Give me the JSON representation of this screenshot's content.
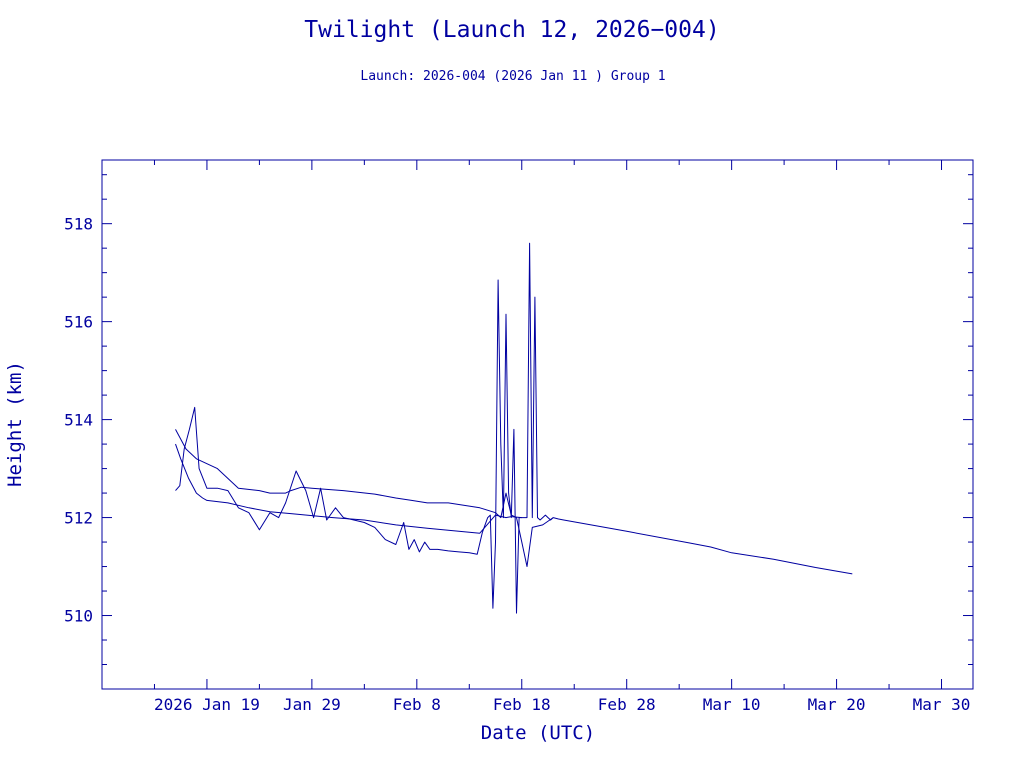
{
  "title": "Twilight (Launch 12, 2026−004)",
  "subtitle": "Launch: 2026-004  (2026 Jan 11 )  Group 1",
  "colors": {
    "ink": "#0000a0",
    "background": "#ffffff"
  },
  "chart_data": {
    "type": "line",
    "xlabel": "Date (UTC)",
    "ylabel": "Height (km)",
    "xlim": [
      "2026-01-09",
      "2026-04-02"
    ],
    "ylim": [
      508.5,
      519.3
    ],
    "grid": false,
    "legend": "none",
    "x_ticks": [
      {
        "date": "2026-01-19",
        "label": "2026 Jan 19"
      },
      {
        "date": "2026-01-29",
        "label": "Jan 29"
      },
      {
        "date": "2026-02-08",
        "label": "Feb  8"
      },
      {
        "date": "2026-02-18",
        "label": "Feb 18"
      },
      {
        "date": "2026-02-28",
        "label": "Feb 28"
      },
      {
        "date": "2026-03-10",
        "label": "Mar 10"
      },
      {
        "date": "2026-03-20",
        "label": "Mar 20"
      },
      {
        "date": "2026-03-30",
        "label": "Mar 30"
      }
    ],
    "y_ticks": [
      {
        "value": 510,
        "label": "510"
      },
      {
        "value": 512,
        "label": "512"
      },
      {
        "value": 514,
        "label": "514"
      },
      {
        "value": 516,
        "label": "516"
      },
      {
        "value": 518,
        "label": "518"
      }
    ],
    "series": [
      {
        "x": [
          "2026-01-16T00:00",
          "2026-01-16T12:00",
          "2026-01-17T06:00",
          "2026-01-18T00:00",
          "2026-01-18T14:00",
          "2026-01-19T00:00",
          "2026-01-21T00:00",
          "2026-01-23T00:00",
          "2026-01-25T00:00",
          "2026-01-27T00:00",
          "2026-01-28T00:00",
          "2026-01-29T00:00",
          "2026-01-31T00:00",
          "2026-02-03T00:00",
          "2026-02-06T00:00",
          "2026-02-09T00:00",
          "2026-02-12T00:00",
          "2026-02-14T00:00",
          "2026-02-15T12:00",
          "2026-02-16T12:00",
          "2026-02-17T00:00",
          "2026-02-17T12:00",
          "2026-02-18T00:00"
        ],
        "y": [
          513.5,
          513.2,
          512.8,
          512.5,
          512.4,
          512.35,
          512.3,
          512.2,
          512.12,
          512.08,
          512.06,
          512.04,
          512.0,
          511.95,
          511.85,
          511.78,
          511.72,
          511.68,
          512.05,
          512.0,
          512.02,
          512.01,
          512.0
        ]
      },
      {
        "x": [
          "2026-01-16T00:00",
          "2026-01-17T00:00",
          "2026-01-18T00:00",
          "2026-01-20T00:00",
          "2026-01-22T00:00",
          "2026-01-24T00:00",
          "2026-01-25T00:00",
          "2026-01-26T12:00",
          "2026-01-27T00:00",
          "2026-01-28T00:00",
          "2026-01-29T00:00",
          "2026-02-01T00:00",
          "2026-02-04T00:00",
          "2026-02-06T00:00",
          "2026-02-07T12:00",
          "2026-02-09T00:00",
          "2026-02-11T00:00",
          "2026-02-14T00:00",
          "2026-02-15T12:00",
          "2026-02-16T00:00",
          "2026-02-16T12:00",
          "2026-02-17T00:00",
          "2026-02-17T12:00",
          "2026-02-18T00:00",
          "2026-02-18T12:00",
          "2026-02-19T00:00",
          "2026-02-20T00:00",
          "2026-02-21T00:00"
        ],
        "y": [
          513.8,
          513.4,
          513.2,
          513.0,
          512.6,
          512.55,
          512.5,
          512.5,
          512.55,
          512.62,
          512.6,
          512.55,
          512.48,
          512.4,
          512.35,
          512.3,
          512.3,
          512.2,
          512.1,
          512.0,
          512.5,
          512.05,
          512.0,
          511.5,
          511.0,
          511.8,
          511.85,
          512.0
        ]
      },
      {
        "x": [
          "2026-01-16T00:00",
          "2026-01-16T10:00",
          "2026-01-16T20:00",
          "2026-01-17T08:00",
          "2026-01-17T20:00",
          "2026-01-18T06:00",
          "2026-01-19T00:00",
          "2026-01-20T00:00",
          "2026-01-21T00:00",
          "2026-01-22T00:00",
          "2026-01-23T00:00",
          "2026-01-24T00:00",
          "2026-01-25T00:00",
          "2026-01-25T20:00",
          "2026-01-26T12:00",
          "2026-01-27T12:00",
          "2026-01-28T10:00",
          "2026-01-29T04:00",
          "2026-01-29T20:00",
          "2026-01-30T10:00",
          "2026-01-31T06:00",
          "2026-02-01T00:00",
          "2026-02-02T00:00",
          "2026-02-03T00:00",
          "2026-02-04T00:00",
          "2026-02-05T00:00",
          "2026-02-06T00:00",
          "2026-02-06T18:00",
          "2026-02-07T06:00",
          "2026-02-07T18:00",
          "2026-02-08T06:00",
          "2026-02-08T18:00",
          "2026-02-09T06:00",
          "2026-02-10T00:00",
          "2026-02-11T00:00",
          "2026-02-12T00:00",
          "2026-02-13T00:00",
          "2026-02-13T18:00",
          "2026-02-14T06:00",
          "2026-02-14T18:00",
          "2026-02-15T00:00",
          "2026-02-15T06:00",
          "2026-02-15T12:00",
          "2026-02-15T18:00",
          "2026-02-16T00:00",
          "2026-02-16T06:00",
          "2026-02-16T12:00",
          "2026-02-16T18:00",
          "2026-02-17T00:00",
          "2026-02-17T06:00",
          "2026-02-17T12:00",
          "2026-02-17T18:00",
          "2026-02-18T00:00",
          "2026-02-18T04:00",
          "2026-02-18T08:00",
          "2026-02-18T12:00",
          "2026-02-18T18:00",
          "2026-02-19T00:00",
          "2026-02-19T06:00",
          "2026-02-19T12:00",
          "2026-02-19T18:00",
          "2026-02-20T00:00",
          "2026-02-20T06:00",
          "2026-02-20T12:00",
          "2026-02-20T18:00",
          "2026-02-21T00:00",
          "2026-02-21T12:00",
          "2026-02-22T00:00",
          "2026-02-28T00:00",
          "2026-03-06T00:00",
          "2026-03-08T00:00",
          "2026-03-10T00:00",
          "2026-03-14T00:00",
          "2026-03-18T00:00",
          "2026-03-21T12:00"
        ],
        "y": [
          512.55,
          512.65,
          513.4,
          513.8,
          514.25,
          513.0,
          512.6,
          512.6,
          512.55,
          512.2,
          512.1,
          511.75,
          512.1,
          512.0,
          512.3,
          512.95,
          512.55,
          512.0,
          512.6,
          511.95,
          512.2,
          512.0,
          511.95,
          511.9,
          511.8,
          511.55,
          511.45,
          511.9,
          511.35,
          511.55,
          511.3,
          511.5,
          511.35,
          511.35,
          511.32,
          511.3,
          511.28,
          511.25,
          511.7,
          512.0,
          512.05,
          510.15,
          511.5,
          516.85,
          513.5,
          512.0,
          516.15,
          512.5,
          512.0,
          513.8,
          510.05,
          512.0,
          512.0,
          512.0,
          512.0,
          512.0,
          517.6,
          512.0,
          516.5,
          512.0,
          511.95,
          512.0,
          512.05,
          512.0,
          511.95,
          512.0,
          511.97,
          511.95,
          511.72,
          511.48,
          511.4,
          511.28,
          511.15,
          510.98,
          510.85
        ]
      }
    ]
  }
}
